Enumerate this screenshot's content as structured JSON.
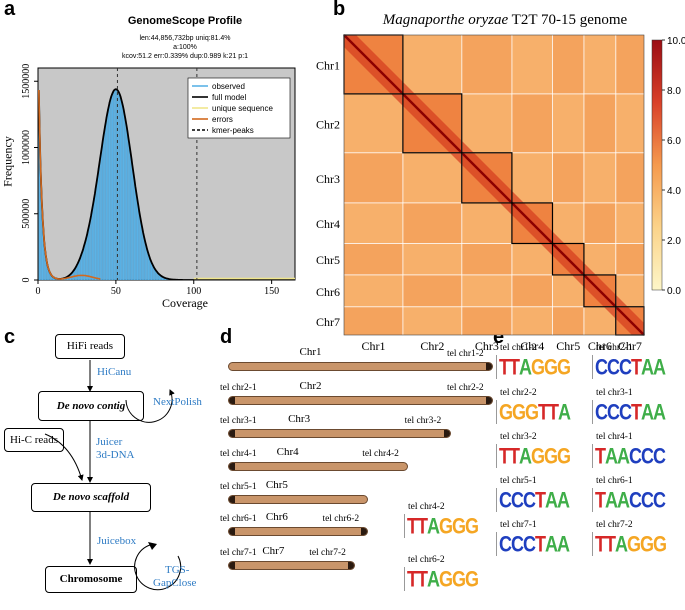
{
  "panels": {
    "a": "a",
    "b": "b",
    "c": "c",
    "d": "d",
    "e": "e"
  },
  "genomescope": {
    "title": "GenomeScope Profile",
    "stats_line1": "len:44,856,732bp uniq:81.4%",
    "stats_line2": "a:100%",
    "stats_line3": "kcov:51.2 err:0.339%  dup:0.989  k:21 p:1",
    "xlabel": "Coverage",
    "ylabel": "Frequency",
    "yticks": [
      "0",
      "500000",
      "1000000",
      "1500000"
    ],
    "xticks": [
      "0",
      "50",
      "100",
      "150"
    ],
    "legend": [
      "observed",
      "full model",
      "unique sequence",
      "errors",
      "kmer-peaks"
    ],
    "colors": {
      "observed": "#5bb3e6",
      "full_model": "#000000",
      "unique": "#f0e68c",
      "errors": "#d2691e",
      "bg": "#c8c8c8"
    }
  },
  "chart_data": {
    "type": "area",
    "title": "GenomeScope Profile",
    "xlabel": "Coverage",
    "ylabel": "Frequency",
    "xlim": [
      0,
      165
    ],
    "ylim": [
      0,
      1600000
    ],
    "kmer_peaks": [
      51,
      102
    ],
    "series": [
      {
        "name": "observed",
        "x": [
          2,
          5,
          10,
          15,
          20,
          25,
          30,
          35,
          40,
          45,
          50,
          55,
          60,
          65,
          70,
          75,
          80,
          85,
          90,
          100,
          120,
          150
        ],
        "values": [
          1600000,
          480000,
          30000,
          20000,
          30000,
          40000,
          120000,
          330000,
          720000,
          1150000,
          1440000,
          1300000,
          920000,
          510000,
          230000,
          90000,
          35000,
          15000,
          8000,
          4000,
          2000,
          1000
        ]
      },
      {
        "name": "errors",
        "x": [
          1,
          3,
          5,
          8,
          10,
          15,
          20,
          25,
          30
        ],
        "values": [
          1600000,
          700000,
          300000,
          90000,
          40000,
          20000,
          10000,
          5000,
          2000
        ]
      }
    ]
  },
  "hic": {
    "title_italic": "Magnaporthe oryzae",
    "title_rest": " T2T 70-15 genome",
    "row_labels": [
      "Chr1",
      "Chr2",
      "Chr3",
      "Chr4",
      "Chr5",
      "Chr6",
      "Chr7"
    ],
    "col_labels": [
      "Chr1",
      "Chr2",
      "Chr3",
      "Chr4",
      "Chr5",
      "Chr6",
      "Chr7"
    ],
    "colorbar_ticks": [
      "10.0",
      "8.0",
      "6.0",
      "4.0",
      "2.0",
      "0.0"
    ],
    "chrom_fractions": [
      0.148,
      0.148,
      0.126,
      0.102,
      0.079,
      0.08,
      0.071
    ]
  },
  "workflow": {
    "hifi": "HiFi reads",
    "hicanu": "HiCanu",
    "contig": "De novo contig",
    "nextpolish": "NextPolish",
    "hic_reads": "Hi-C reads",
    "juicer1": "Juicer",
    "juicer2": "3d-DNA",
    "scaffold": "De novo scaffold",
    "juicebox": "Juicebox",
    "chromosome": "Chromosome",
    "tgs1": "TGS-",
    "tgs2": "GapClose"
  },
  "chromosomes": [
    {
      "name": "Chr1",
      "left_tel": "",
      "right_tel": "tel chr1-2",
      "left_cap": false,
      "right_cap": true,
      "length": 1.0
    },
    {
      "name": "Chr2",
      "left_tel": "tel chr2-1",
      "right_tel": "tel chr2-2",
      "left_cap": true,
      "right_cap": true,
      "length": 1.0
    },
    {
      "name": "Chr3",
      "left_tel": "tel chr3-1",
      "right_tel": "tel chr3-2",
      "left_cap": true,
      "right_cap": true,
      "length": 0.84
    },
    {
      "name": "Chr4",
      "left_tel": "tel chr4-1",
      "right_tel": "tel chr4-2",
      "left_cap": true,
      "right_cap": false,
      "length": 0.68
    },
    {
      "name": "Chr5",
      "left_tel": "tel chr5-1",
      "right_tel": "",
      "left_cap": true,
      "right_cap": false,
      "length": 0.53
    },
    {
      "name": "Chr6",
      "left_tel": "tel chr6-1",
      "right_tel": "tel chr6-2",
      "left_cap": true,
      "right_cap": true,
      "length": 0.53
    },
    {
      "name": "Chr7",
      "left_tel": "tel chr7-1",
      "right_tel": "tel chr7-2",
      "left_cap": true,
      "right_cap": true,
      "length": 0.48
    }
  ],
  "motifs_mid": [
    {
      "label": "tel chr4-2",
      "seq": "TTAGGG"
    },
    {
      "label": "tel chr6-2",
      "seq": "TTAGGG"
    }
  ],
  "motifs": [
    {
      "label": "tel chr1-2",
      "seq": "TTAGGG"
    },
    {
      "label": "tel chr2-1",
      "seq": "CCCTAA"
    },
    {
      "label": "tel chr2-2",
      "seq": "GGGTTA"
    },
    {
      "label": "tel chr3-1",
      "seq": "CCCTAA"
    },
    {
      "label": "tel chr3-2",
      "seq": "TTAGGG"
    },
    {
      "label": "tel chr4-1",
      "seq": "TAACCC"
    },
    {
      "label": "tel chr5-1",
      "seq": "CCCTAA"
    },
    {
      "label": "tel chr6-1",
      "seq": "TAACCC"
    },
    {
      "label": "tel chr7-1",
      "seq": "CCCTAA"
    },
    {
      "label": "tel chr7-2",
      "seq": "TTAGGG"
    }
  ],
  "base_colors": {
    "A": "#3fae49",
    "C": "#1f3fbf",
    "G": "#f5a623",
    "T": "#d62828"
  }
}
